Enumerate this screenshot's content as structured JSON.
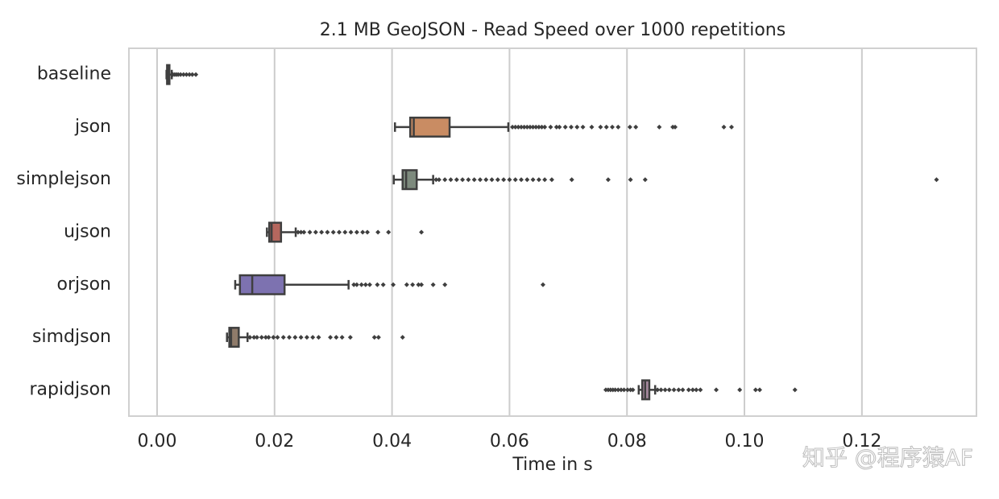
{
  "chart_data": {
    "type": "boxplot",
    "title": "2.1 MB GeoJSON - Read Speed over 1000 repetitions",
    "x_label": "Time in s",
    "orientation": "horizontal",
    "grid": true,
    "outlier_color": "#3f3f3f",
    "line_color": "#3f3f3f",
    "categories": [
      "baseline",
      "json",
      "simplejson",
      "ujson",
      "orjson",
      "simdjson",
      "rapidjson"
    ],
    "colors": [
      "#5a75a8",
      "#c98c63",
      "#7d8a7d",
      "#b5675e",
      "#7d72b0",
      "#8f7b6a",
      "#a88aa0"
    ],
    "boxes": [
      {
        "min": 0.0016,
        "q1": 0.0017,
        "median": 0.0018,
        "q3": 0.0021,
        "max": 0.0025,
        "outliers": [
          0.0027,
          0.003,
          0.0033,
          0.0036,
          0.004,
          0.0045,
          0.005,
          0.0055,
          0.006,
          0.0066
        ]
      },
      {
        "min": 0.0405,
        "q1": 0.0431,
        "median": 0.0437,
        "q3": 0.0498,
        "max": 0.0598,
        "outliers": [
          0.0605,
          0.061,
          0.0615,
          0.062,
          0.0625,
          0.063,
          0.0635,
          0.064,
          0.0645,
          0.065,
          0.0655,
          0.066,
          0.067,
          0.068,
          0.0685,
          0.0695,
          0.0705,
          0.0715,
          0.0725,
          0.074,
          0.0755,
          0.0765,
          0.0775,
          0.0785,
          0.0805,
          0.0815,
          0.0855,
          0.0878,
          0.0882,
          0.0965,
          0.0978
        ]
      },
      {
        "min": 0.0403,
        "q1": 0.0418,
        "median": 0.0424,
        "q3": 0.0442,
        "max": 0.047,
        "outliers": [
          0.0475,
          0.048,
          0.049,
          0.05,
          0.051,
          0.052,
          0.053,
          0.054,
          0.055,
          0.056,
          0.057,
          0.058,
          0.059,
          0.06,
          0.061,
          0.062,
          0.063,
          0.064,
          0.065,
          0.066,
          0.0672,
          0.0706,
          0.0768,
          0.0806,
          0.0831,
          0.1327
        ]
      },
      {
        "min": 0.0187,
        "q1": 0.0191,
        "median": 0.0195,
        "q3": 0.0211,
        "max": 0.0236,
        "outliers": [
          0.024,
          0.0245,
          0.025,
          0.026,
          0.027,
          0.028,
          0.029,
          0.03,
          0.031,
          0.032,
          0.033,
          0.034,
          0.035,
          0.0358,
          0.0376,
          0.0394,
          0.045
        ]
      },
      {
        "min": 0.0133,
        "q1": 0.0141,
        "median": 0.0162,
        "q3": 0.0217,
        "max": 0.0326,
        "outliers": [
          0.0335,
          0.034,
          0.0348,
          0.0355,
          0.0362,
          0.0375,
          0.0385,
          0.0402,
          0.0425,
          0.0435,
          0.0445,
          0.045,
          0.047,
          0.049,
          0.0657
        ]
      },
      {
        "min": 0.0119,
        "q1": 0.0123,
        "median": 0.0126,
        "q3": 0.0139,
        "max": 0.0154,
        "outliers": [
          0.0158,
          0.0165,
          0.017,
          0.0178,
          0.0185,
          0.019,
          0.0198,
          0.0205,
          0.0215,
          0.0225,
          0.0235,
          0.0245,
          0.0255,
          0.0265,
          0.0275,
          0.0295,
          0.0305,
          0.0315,
          0.0329,
          0.037,
          0.0377,
          0.0418
        ]
      },
      {
        "min": 0.082,
        "q1": 0.0826,
        "median": 0.0831,
        "q3": 0.0838,
        "max": 0.0848,
        "outliers": [
          0.0764,
          0.0768,
          0.0772,
          0.0776,
          0.078,
          0.0785,
          0.079,
          0.0795,
          0.0801,
          0.0806,
          0.081,
          0.0852,
          0.0858,
          0.0865,
          0.0872,
          0.088,
          0.0888,
          0.0895,
          0.0905,
          0.0912,
          0.0918,
          0.0925,
          0.0952,
          0.0992,
          0.1019,
          0.1026,
          0.1086
        ]
      }
    ],
    "xlim": [
      -0.0048,
      0.1395
    ],
    "xticks": [
      {
        "value": 0,
        "label": "0.00"
      },
      0.02,
      0.04,
      0.06,
      0.08,
      {
        "value": 0.1,
        "label": "0.10"
      },
      0.12
    ]
  },
  "watermark": "知乎 @程序猿AF"
}
